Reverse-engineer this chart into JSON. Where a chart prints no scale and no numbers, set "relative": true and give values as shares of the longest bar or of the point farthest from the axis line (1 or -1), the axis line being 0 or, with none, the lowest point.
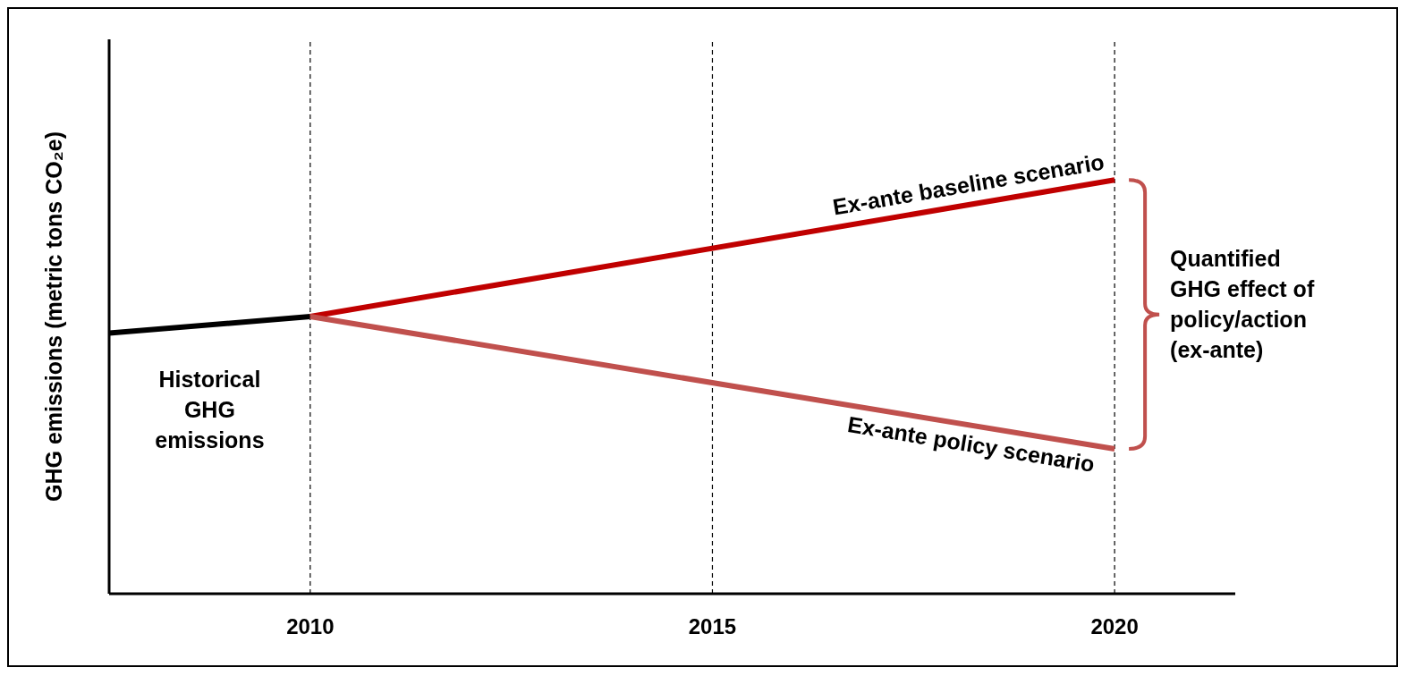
{
  "chart_data": {
    "type": "line",
    "relative": true,
    "ylabel": "GHG emissions (metric tons CO₂e)",
    "xlim": [
      2007.5,
      2021.5
    ],
    "xticks": [
      2010,
      2015,
      2020
    ],
    "grid": false,
    "marker": "none",
    "line_style": "solid",
    "tick_labels": "x",
    "series": [
      {
        "name": "Historical GHG emissions",
        "color": "#000000",
        "x": [
          2007.5,
          2010
        ],
        "values": [
          0.63,
          0.67
        ]
      },
      {
        "name": "Ex-ante baseline scenario",
        "color": "#c00000",
        "x": [
          2010,
          2020
        ],
        "values": [
          0.67,
          1
        ]
      },
      {
        "name": "Ex-ante policy scenario",
        "color": "#c0504d",
        "x": [
          2010,
          2020
        ],
        "values": [
          0.67,
          0.35
        ]
      }
    ],
    "ref_lines": [
      {
        "axis": "x",
        "value": 2010,
        "color": "#000000",
        "line_style": "dashed"
      },
      {
        "axis": "x",
        "value": 2015,
        "color": "#000000",
        "line_style": "dashed"
      },
      {
        "axis": "x",
        "value": 2020,
        "color": "#000000",
        "line_style": "dashed"
      }
    ],
    "annotations": [
      "Quantified GHG effect of policy/action (ex-ante)"
    ]
  }
}
